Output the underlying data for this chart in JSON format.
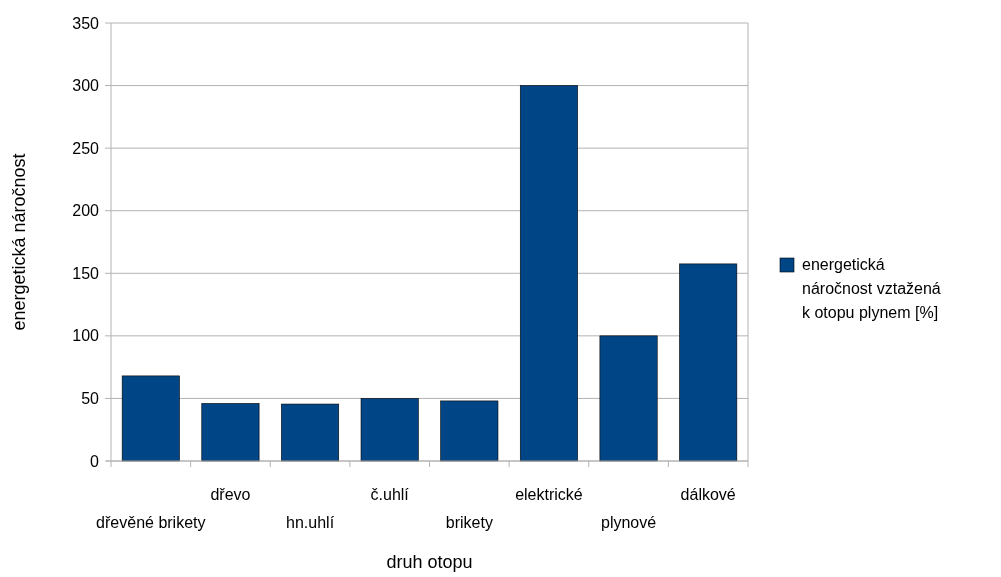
{
  "chart_data": {
    "type": "bar",
    "xlabel": "druh otopu",
    "ylabel": "energetická náročnost",
    "categories": [
      "dřevěné brikety",
      "dřevo",
      "hn.uhlí",
      "č.uhlí",
      "brikety",
      "elektrické",
      "plynové",
      "dálkové"
    ],
    "series": [
      {
        "name": "energetická náročnost vztažená k otopu plynem  [%]",
        "color": "#004586",
        "values": [
          68,
          46,
          45.5,
          50,
          48,
          300,
          100,
          157.5
        ]
      }
    ],
    "ylim": [
      0,
      350
    ],
    "yticks": [
      0,
      50,
      100,
      150,
      200,
      250,
      300,
      350
    ],
    "grid": "y",
    "legend": "right"
  }
}
